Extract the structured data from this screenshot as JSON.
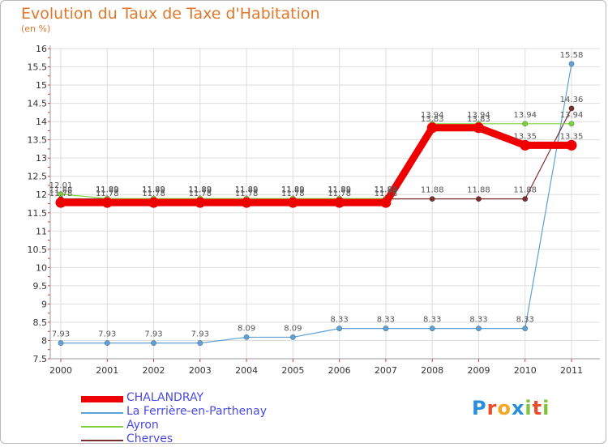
{
  "header": {
    "title": "Evolution du Taux de Taxe d'Habitation",
    "subtitle": "(en %)"
  },
  "chart_data": {
    "type": "line",
    "title": "Evolution du Taux de Taxe d'Habitation",
    "ylabel": "(en %)",
    "xlabel": "",
    "categories": [
      "2000",
      "2001",
      "2002",
      "2003",
      "2004",
      "2005",
      "2006",
      "2007",
      "2008",
      "2009",
      "2010",
      "2011"
    ],
    "ylim": [
      7.5,
      16
    ],
    "yticks": [
      "7.5",
      "8",
      "8.5",
      "9",
      "9.5",
      "10",
      "10.5",
      "11",
      "11.5",
      "12",
      "12.5",
      "13",
      "13.5",
      "14",
      "14.5",
      "15",
      "15.5",
      "16"
    ],
    "series": [
      {
        "name": "CHALANDRAY",
        "color": "#ee0000",
        "values": [
          11.78,
          11.78,
          11.78,
          11.78,
          11.78,
          11.78,
          11.78,
          11.78,
          13.83,
          13.83,
          13.35,
          13.35
        ],
        "labels": [
          "11.78",
          "11.78",
          "11.78",
          "11.78",
          "11.78",
          "11.78",
          "11.78",
          "11.78",
          "13.83",
          "13.83",
          "13.35",
          "13.35"
        ]
      },
      {
        "name": "La Ferrière-en-Parthenay",
        "color": "#5fa0d6",
        "values": [
          7.93,
          7.93,
          7.93,
          7.93,
          8.09,
          8.09,
          8.33,
          8.33,
          8.33,
          8.33,
          8.33,
          15.58
        ],
        "labels": [
          "7.93",
          "7.93",
          "7.93",
          "7.93",
          "8.09",
          "8.09",
          "8.33",
          "8.33",
          "8.33",
          "8.33",
          "8.33",
          "15.58"
        ]
      },
      {
        "name": "Ayron",
        "color": "#7cd23c",
        "values": [
          12.01,
          11.89,
          11.89,
          11.89,
          11.89,
          11.89,
          11.89,
          11.89,
          13.94,
          13.94,
          13.94,
          13.94
        ],
        "labels": [
          "12.01",
          "11.89",
          "11.89",
          "11.89",
          "11.89",
          "11.89",
          "11.89",
          "11.89",
          "13.94",
          "13.94",
          "13.94",
          "13.94"
        ]
      },
      {
        "name": "Cherves",
        "color": "#7a2e2e",
        "values": [
          11.88,
          11.88,
          11.88,
          11.88,
          11.88,
          11.88,
          11.88,
          11.88,
          11.88,
          11.88,
          11.88,
          14.36
        ],
        "labels": [
          "11.88",
          "11.88",
          "11.88",
          "11.88",
          "11.88",
          "11.88",
          "11.88",
          "11.88",
          "11.88",
          "11.88",
          "11.88",
          "14.36"
        ]
      }
    ]
  },
  "legend": [
    {
      "label": "CHALANDRAY",
      "color": "#ee0000"
    },
    {
      "label": "La Ferrière-en-Parthenay",
      "color": "#5fa0d6"
    },
    {
      "label": "Ayron",
      "color": "#7cd23c"
    },
    {
      "label": "Cherves",
      "color": "#7a2e2e"
    }
  ],
  "logo": {
    "text": "Proxiti"
  }
}
